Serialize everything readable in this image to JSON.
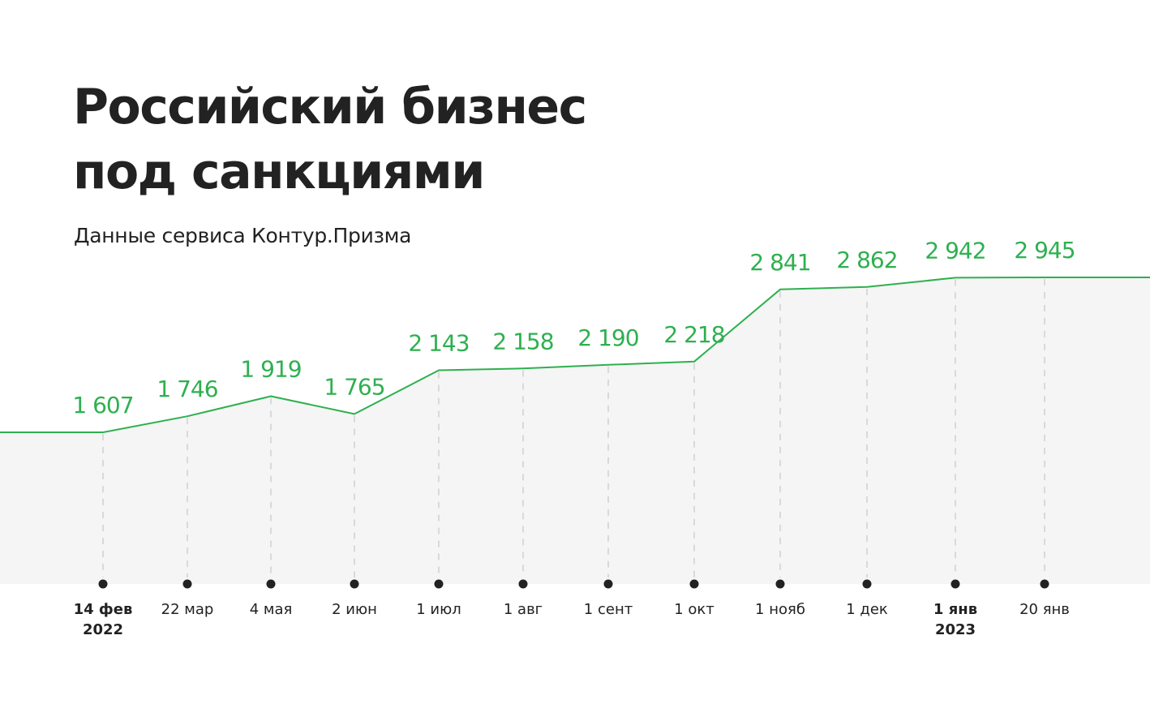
{
  "header": {
    "title_line1": "Российский бизнес",
    "title_line2": "под санкциями",
    "subtitle": "Данные сервиса Контур.Призма"
  },
  "colors": {
    "line": "#2eb04f",
    "label": "#2eb04f",
    "area": "#f5f5f5",
    "grid": "#d9d9d9",
    "dot": "#222222",
    "text": "#222222"
  },
  "chart_data": {
    "type": "line",
    "title": "Российский бизнес под санкциями",
    "subtitle": "Данные сервиса Контур.Призма",
    "xlabel": "",
    "ylabel": "",
    "grid": "vertical dashed lines at each point",
    "legend": "none",
    "area_fill": true,
    "categories": [
      "14 фев 2022",
      "22 мар",
      "4 мая",
      "2 июн",
      "1 июл",
      "1 авг",
      "1 сент",
      "1 окт",
      "1 нояб",
      "1 дек",
      "1 янв 2023",
      "20 янв"
    ],
    "tick_labels": [
      {
        "line1": "14 фев",
        "line2": "2022",
        "bold": true
      },
      {
        "line1": "22 мар",
        "line2": "",
        "bold": false
      },
      {
        "line1": "4 мая",
        "line2": "",
        "bold": false
      },
      {
        "line1": "2 июн",
        "line2": "",
        "bold": false
      },
      {
        "line1": "1 июл",
        "line2": "",
        "bold": false
      },
      {
        "line1": "1 авг",
        "line2": "",
        "bold": false
      },
      {
        "line1": "1 сент",
        "line2": "",
        "bold": false
      },
      {
        "line1": "1 окт",
        "line2": "",
        "bold": false
      },
      {
        "line1": "1 нояб",
        "line2": "",
        "bold": false
      },
      {
        "line1": "1 дек",
        "line2": "",
        "bold": false
      },
      {
        "line1": "1 янв",
        "line2": "2023",
        "bold": true
      },
      {
        "line1": "20 янв",
        "line2": "",
        "bold": false
      }
    ],
    "values": [
      1607,
      1746,
      1919,
      1765,
      2143,
      2158,
      2190,
      2218,
      2841,
      2862,
      2942,
      2945
    ],
    "value_labels": [
      "1 607",
      "1 746",
      "1 919",
      "1 765",
      "2 143",
      "2 158",
      "2 190",
      "2 218",
      "2 841",
      "2 862",
      "2 942",
      "2 945"
    ]
  }
}
